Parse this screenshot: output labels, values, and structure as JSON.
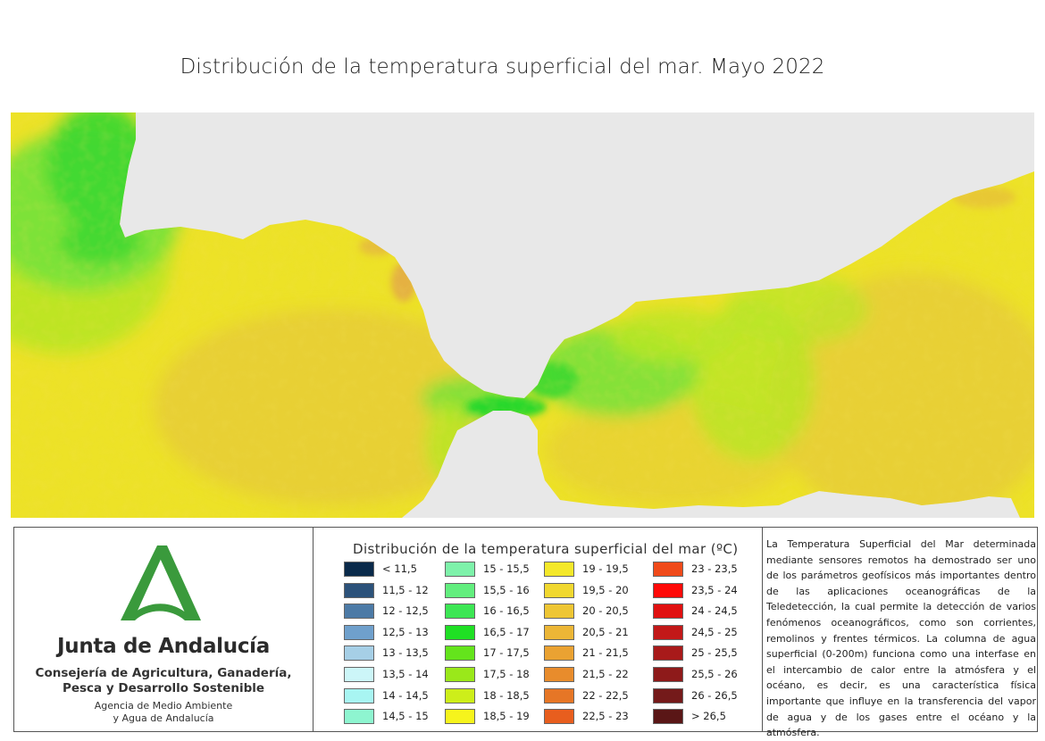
{
  "title": "Distribución de la temperatura superficial del mar. Mayo 2022",
  "colors": {
    "land": "#e8e8e8",
    "sea_base": "#ede227",
    "sea_warm": "#e6c93a",
    "sea_cool": "#b8e626",
    "sea_green": "#79e13a",
    "sea_deep_green": "#3fd830",
    "strait": "#22d82a",
    "coast_warm": "#e3a848",
    "logo_green": "#3a9a3c"
  },
  "logo": {
    "name": "Junta de Andalucía",
    "dept_line1": "Consejería de Agricultura, Ganadería,",
    "dept_line2": "Pesca y Desarrollo Sostenible",
    "agency_line1": "Agencia de Medio Ambiente",
    "agency_line2": "y Agua de Andalucía"
  },
  "legend": {
    "title": "Distribución de la temperatura superficial del mar (ºC)",
    "columns": [
      [
        {
          "label": "< 11,5",
          "color": "#0a2a4a"
        },
        {
          "label": "11,5 - 12",
          "color": "#2c527a"
        },
        {
          "label": "12 - 12,5",
          "color": "#4c7aa6"
        },
        {
          "label": "12,5 - 13",
          "color": "#6fa0cc"
        },
        {
          "label": "13 - 13,5",
          "color": "#a6cfe6"
        },
        {
          "label": "13,5 - 14",
          "color": "#ccf6f8"
        },
        {
          "label": "14 - 14,5",
          "color": "#a8f5f2"
        },
        {
          "label": "14,5 - 15",
          "color": "#8ef5d0"
        }
      ],
      [
        {
          "label": "15 - 15,5",
          "color": "#7ef2aa"
        },
        {
          "label": "15,5 - 16",
          "color": "#62ee7e"
        },
        {
          "label": "16 - 16,5",
          "color": "#3ce654"
        },
        {
          "label": "16,5 - 17",
          "color": "#1fe024"
        },
        {
          "label": "17 - 17,5",
          "color": "#64e41c"
        },
        {
          "label": "17,5 - 18",
          "color": "#9ae81a"
        },
        {
          "label": "18 - 18,5",
          "color": "#cdee1a"
        },
        {
          "label": "18,5 - 19",
          "color": "#f6f41c"
        }
      ],
      [
        {
          "label": "19 - 19,5",
          "color": "#f4e82a"
        },
        {
          "label": "19,5 - 20",
          "color": "#f1d830"
        },
        {
          "label": "20 - 20,5",
          "color": "#eec634"
        },
        {
          "label": "20,5 - 21",
          "color": "#ecb636"
        },
        {
          "label": "21 - 21,5",
          "color": "#eaa232"
        },
        {
          "label": "21,5 - 22",
          "color": "#e88c2c"
        },
        {
          "label": "22 - 22,5",
          "color": "#e67626"
        },
        {
          "label": "22,5 - 23",
          "color": "#e85e1e"
        }
      ],
      [
        {
          "label": "23 - 23,5",
          "color": "#f04a1a"
        },
        {
          "label": "23,5 - 24",
          "color": "#ff0a08"
        },
        {
          "label": "24 - 24,5",
          "color": "#e01010"
        },
        {
          "label": "24,5 - 25",
          "color": "#c21818"
        },
        {
          "label": "25 - 25,5",
          "color": "#a81a1a"
        },
        {
          "label": "25,5 - 26",
          "color": "#8e1a1a"
        },
        {
          "label": "26 - 26,5",
          "color": "#741a1a"
        },
        {
          "label": "> 26,5",
          "color": "#5a1616"
        }
      ]
    ]
  },
  "description": "La Temperatura Superficial del Mar determinada mediante sensores remotos ha demostrado ser uno de los parámetros geofísicos más importantes dentro de las aplicaciones oceanográficas de la Teledetección, la cual permite la detección de varios fenómenos oceanográficos, como son corrientes, remolinos y frentes térmicos. La columna de agua superficial (0-200m) funciona como una interfase en el intercambio de calor entre la atmósfera y el océano, es decir, es una característica física importante que influye en la transferencia del vapor de agua y de los gases entre el océano y la atmósfera."
}
